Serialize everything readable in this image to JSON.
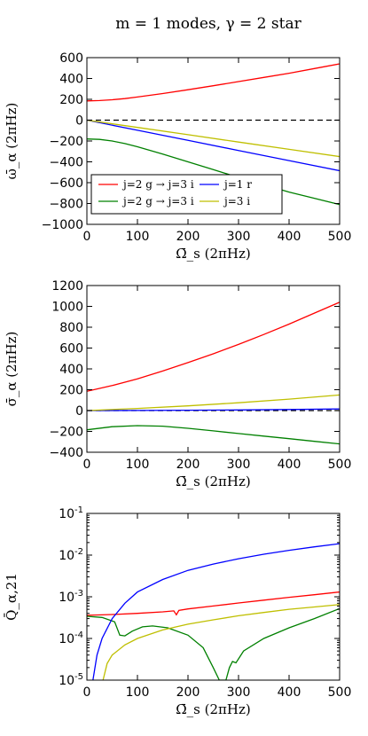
{
  "figure": {
    "title": "m = 1 modes, γ = 2 star"
  },
  "colors": {
    "red": "#ff0000",
    "green": "#008000",
    "blue": "#0000ff",
    "yellow": "#bfbf00"
  },
  "chart_data": [
    {
      "type": "line",
      "xlabel": "Ω̄_s (2πHz)",
      "ylabel": "ω̄_α (2πHz)",
      "xlim": [
        0,
        500
      ],
      "ylim": [
        -1000,
        600
      ],
      "xticks": [
        "0",
        "100",
        "200",
        "300",
        "400",
        "500"
      ],
      "yticks": [
        "−1000",
        "−800",
        "−600",
        "−400",
        "−200",
        "0",
        "200",
        "400",
        "600"
      ],
      "legend_position": "lower-left",
      "reference_line": 0,
      "series": [
        {
          "name": "j=2 g → j=3 i",
          "color_key": "red",
          "x": [
            0,
            25,
            50,
            75,
            100,
            150,
            200,
            250,
            300,
            350,
            400,
            450,
            500
          ],
          "y": [
            185,
            188,
            196,
            207,
            222,
            255,
            292,
            330,
            370,
            410,
            450,
            495,
            540
          ]
        },
        {
          "name": "j=2 g → j=3 i",
          "color_key": "green",
          "x": [
            0,
            25,
            50,
            75,
            100,
            150,
            200,
            250,
            300,
            350,
            400,
            450,
            500
          ],
          "y": [
            -180,
            -185,
            -200,
            -225,
            -255,
            -325,
            -400,
            -475,
            -550,
            -620,
            -690,
            -750,
            -810
          ]
        },
        {
          "name": "j=1 r",
          "color_key": "blue",
          "x": [
            0,
            100,
            200,
            300,
            400,
            500
          ],
          "y": [
            0,
            -97,
            -194,
            -291,
            -388,
            -485
          ]
        },
        {
          "name": "j=3 i",
          "color_key": "yellow",
          "x": [
            0,
            100,
            200,
            300,
            400,
            500
          ],
          "y": [
            0,
            -70,
            -140,
            -210,
            -280,
            -350
          ]
        }
      ]
    },
    {
      "type": "line",
      "xlabel": "Ω̄_s (2πHz)",
      "ylabel": "σ̄_α (2πHz)",
      "xlim": [
        0,
        500
      ],
      "ylim": [
        -400,
        1200
      ],
      "xticks": [
        "0",
        "100",
        "200",
        "300",
        "400",
        "500"
      ],
      "yticks": [
        "−400",
        "−200",
        "0",
        "200",
        "400",
        "600",
        "800",
        "1000",
        "1200"
      ],
      "reference_line": 0,
      "series": [
        {
          "color_key": "red",
          "x": [
            0,
            50,
            100,
            150,
            200,
            250,
            300,
            350,
            400,
            450,
            500
          ],
          "y": [
            185,
            240,
            305,
            380,
            460,
            545,
            635,
            730,
            830,
            935,
            1040
          ]
        },
        {
          "color_key": "green",
          "x": [
            0,
            50,
            100,
            150,
            200,
            250,
            300,
            350,
            400,
            450,
            500
          ],
          "y": [
            -185,
            -155,
            -145,
            -150,
            -170,
            -195,
            -220,
            -245,
            -270,
            -295,
            -320
          ]
        },
        {
          "color_key": "blue",
          "x": [
            0,
            100,
            200,
            300,
            400,
            500
          ],
          "y": [
            0,
            1,
            3,
            6,
            10,
            15
          ]
        },
        {
          "color_key": "yellow",
          "x": [
            0,
            100,
            200,
            300,
            400,
            500
          ],
          "y": [
            0,
            20,
            45,
            75,
            110,
            150
          ]
        }
      ]
    },
    {
      "type": "line",
      "xlabel": "Ω̄_s (2πHz)",
      "ylabel": "Q̄_α,21",
      "xlim": [
        0,
        500
      ],
      "ylim": [
        1e-05,
        0.1
      ],
      "yscale": "log",
      "xticks": [
        "0",
        "100",
        "200",
        "300",
        "400",
        "500"
      ],
      "yticks": [
        {
          "base": "10",
          "exp": "-1"
        },
        {
          "base": "10",
          "exp": "-2"
        },
        {
          "base": "10",
          "exp": "-3"
        },
        {
          "base": "10",
          "exp": "-4"
        },
        {
          "base": "10",
          "exp": "-5"
        }
      ],
      "series": [
        {
          "color_key": "red",
          "x": [
            0,
            50,
            100,
            150,
            172,
            177,
            182,
            200,
            250,
            300,
            350,
            400,
            450,
            500
          ],
          "y": [
            0.00036,
            0.000375,
            0.0004,
            0.000435,
            0.00046,
            0.00037,
            0.00047,
            0.00051,
            0.0006,
            0.00071,
            0.00083,
            0.00097,
            0.00112,
            0.0013
          ]
        },
        {
          "color_key": "green",
          "x": [
            0,
            30,
            55,
            65,
            75,
            90,
            110,
            130,
            160,
            200,
            230,
            250,
            262,
            268,
            275,
            282,
            288,
            295,
            310,
            350,
            400,
            450,
            500
          ],
          "y": [
            0.00034,
            0.00032,
            0.00025,
            0.00012,
            0.000115,
            0.00015,
            0.00019,
            0.0002,
            0.00018,
            0.00012,
            6e-05,
            2e-05,
            1e-05,
            1e-05,
            1e-05,
            2e-05,
            2.8e-05,
            2.6e-05,
            5e-05,
            0.0001,
            0.00018,
            0.0003,
            0.00052
          ]
        },
        {
          "color_key": "blue",
          "x": [
            12,
            20,
            30,
            50,
            75,
            100,
            150,
            200,
            250,
            300,
            350,
            400,
            450,
            500
          ],
          "y": [
            1e-05,
            4e-05,
            0.0001,
            0.0003,
            0.0007,
            0.0013,
            0.0026,
            0.0043,
            0.0061,
            0.0082,
            0.0105,
            0.013,
            0.0158,
            0.0188
          ]
        },
        {
          "color_key": "yellow",
          "x": [
            32,
            40,
            50,
            75,
            100,
            150,
            200,
            250,
            300,
            350,
            400,
            450,
            500
          ],
          "y": [
            1e-05,
            2.5e-05,
            4e-05,
            7e-05,
            0.0001,
            0.00016,
            0.00022,
            0.00028,
            0.00035,
            0.00042,
            0.0005,
            0.00057,
            0.00065
          ]
        }
      ]
    }
  ]
}
